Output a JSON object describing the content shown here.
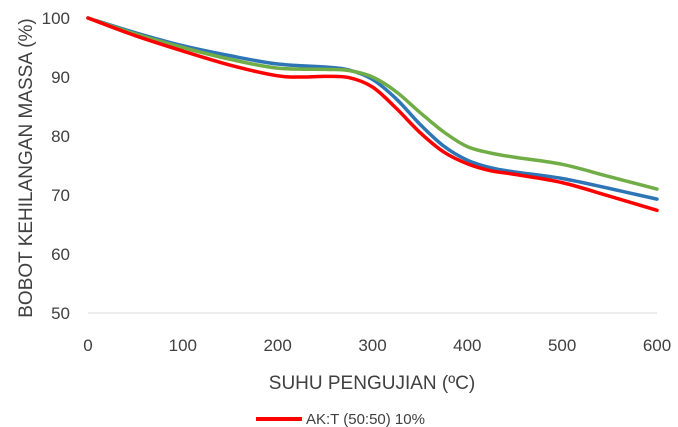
{
  "chart_data": {
    "type": "line",
    "xlabel": "SUHU PENGUJIAN (ºC)",
    "ylabel": "BOBOT KEHILANGAN MASSA (%)",
    "xlim": [
      0,
      600
    ],
    "ylim": [
      50,
      100
    ],
    "xticks": [
      0,
      100,
      200,
      300,
      400,
      500,
      600
    ],
    "yticks": [
      50,
      60,
      70,
      80,
      90,
      100
    ],
    "grid": false,
    "legend_position": "bottom",
    "series": [
      {
        "color": "#2E75B6",
        "x": [
          0,
          50,
          100,
          150,
          200,
          250,
          275,
          300,
          325,
          350,
          375,
          400,
          425,
          450,
          500,
          550,
          600
        ],
        "y": [
          100,
          97.5,
          95.3,
          93.6,
          92.2,
          91.7,
          91.2,
          89.6,
          86.3,
          82.0,
          78.3,
          75.9,
          74.6,
          73.9,
          72.8,
          71.1,
          69.3
        ]
      },
      {
        "color": "#70AD47",
        "x": [
          0,
          50,
          100,
          150,
          200,
          250,
          275,
          300,
          325,
          350,
          375,
          400,
          425,
          450,
          500,
          550,
          600
        ],
        "y": [
          100,
          97.3,
          95.0,
          93.0,
          91.5,
          91.3,
          91.1,
          90.0,
          87.5,
          84.0,
          80.7,
          78.2,
          77.1,
          76.4,
          75.2,
          73.1,
          71.0
        ]
      },
      {
        "name": "AK:T (50:50) 10%",
        "color": "#FF0000",
        "x": [
          0,
          50,
          100,
          150,
          200,
          225,
          250,
          275,
          300,
          325,
          350,
          375,
          400,
          425,
          450,
          500,
          550,
          600
        ],
        "y": [
          100,
          97.0,
          94.4,
          92.0,
          90.2,
          90.0,
          90.1,
          89.9,
          88.3,
          84.7,
          80.6,
          77.3,
          75.3,
          74.1,
          73.5,
          72.1,
          69.8,
          67.4
        ]
      }
    ]
  }
}
